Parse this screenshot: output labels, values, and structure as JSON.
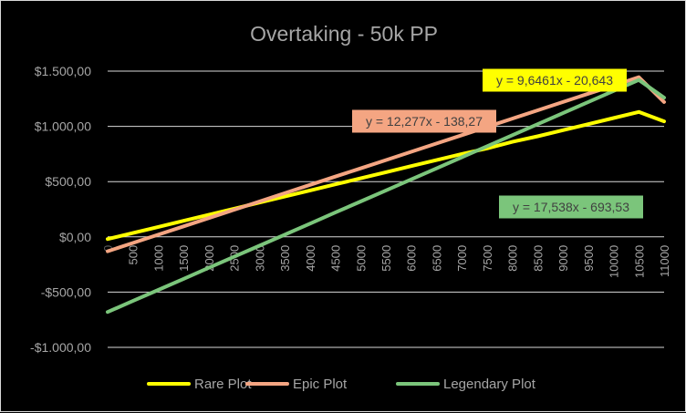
{
  "chart_data": {
    "type": "line",
    "title": "Overtaking - 50k PP",
    "xlabel": "",
    "ylabel": "",
    "x": [
      0,
      500,
      1000,
      1500,
      2000,
      2500,
      3000,
      3500,
      4000,
      4500,
      5000,
      5500,
      6000,
      6500,
      7000,
      7500,
      8000,
      8500,
      9000,
      9500,
      10000,
      10500,
      11000
    ],
    "categories": [
      "0",
      "500",
      "1000",
      "1500",
      "2000",
      "2500",
      "3000",
      "3500",
      "4000",
      "4500",
      "5000",
      "5500",
      "6000",
      "6500",
      "7000",
      "7500",
      "8000",
      "8500",
      "9000",
      "9500",
      "10000",
      "10500",
      "11000"
    ],
    "series": [
      {
        "name": "Rare Plot",
        "color": "#ffff00",
        "values": [
          -20,
          35,
          90,
          145,
          200,
          255,
          310,
          365,
          420,
          475,
          530,
          585,
          640,
          695,
          750,
          800,
          860,
          910,
          965,
          1020,
          1075,
          1130,
          1045
        ]
      },
      {
        "name": "Epic Plot",
        "color": "#f4a582",
        "values": [
          -130,
          -55,
          20,
          95,
          170,
          245,
          320,
          395,
          470,
          545,
          620,
          695,
          770,
          845,
          920,
          995,
          1070,
          1145,
          1220,
          1295,
          1370,
          1445,
          1220
        ]
      },
      {
        "name": "Legendary Plot",
        "color": "#7bc57b",
        "values": [
          -680,
          -580,
          -480,
          -380,
          -280,
          -180,
          -80,
          20,
          120,
          220,
          320,
          420,
          520,
          620,
          720,
          820,
          920,
          1020,
          1120,
          1220,
          1320,
          1420,
          1260
        ]
      }
    ],
    "ylim": [
      -1000,
      1500
    ],
    "yticks": [
      -1000,
      -500,
      0,
      500,
      1000,
      1500
    ],
    "ytick_labels": [
      "-$1.000,00",
      "-$500,00",
      "$0,00",
      "$500,00",
      "$1.000,00",
      "$1.500,00"
    ],
    "xtick_labels": [
      "0",
      "500",
      "1000",
      "1500",
      "2000",
      "2500",
      "3000",
      "3500",
      "4000",
      "4500",
      "5000",
      "5500",
      "6000",
      "6500",
      "7000",
      "7500",
      "8000",
      "8500",
      "9000",
      "9500",
      "10000",
      "10500",
      "11000"
    ],
    "grid": true,
    "legend": "bottom",
    "annotations": [
      {
        "series": "Rare Plot",
        "text": "y = 9,6461x - 20,643",
        "bg": "#ffff00"
      },
      {
        "series": "Epic Plot",
        "text": "y = 12,277x - 138,27",
        "bg": "#f4a582"
      },
      {
        "series": "Legendary Plot",
        "text": "y = 17,538x - 693,53",
        "bg": "#7bc57b"
      }
    ]
  }
}
